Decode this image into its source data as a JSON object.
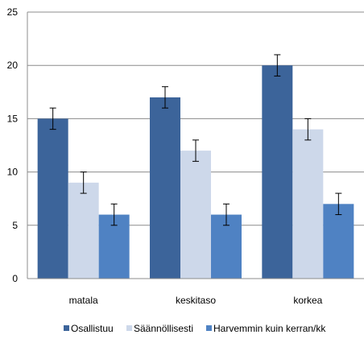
{
  "chart_data": {
    "type": "bar",
    "title": "",
    "xlabel": "",
    "ylabel": "",
    "categories": [
      "matala",
      "keskitaso",
      "korkea"
    ],
    "ylim": [
      0,
      25
    ],
    "yticks": [
      "0",
      "5",
      "10",
      "15",
      "20",
      "25"
    ],
    "grid": true,
    "legend_position": "bottom",
    "error_bars": true,
    "series": [
      {
        "name": "Osallistuu",
        "values": [
          15,
          17,
          20
        ],
        "error": [
          1,
          1,
          1
        ],
        "color": "#3C649A"
      },
      {
        "name": "Säännöllisesti",
        "values": [
          9,
          12,
          14
        ],
        "error": [
          1,
          1,
          1
        ],
        "color": "#CDD8EA"
      },
      {
        "name": "Harvemmin kuin kerran/kk",
        "values": [
          6,
          6,
          7
        ],
        "error": [
          1,
          1,
          1
        ],
        "color": "#4F82C3"
      }
    ]
  }
}
